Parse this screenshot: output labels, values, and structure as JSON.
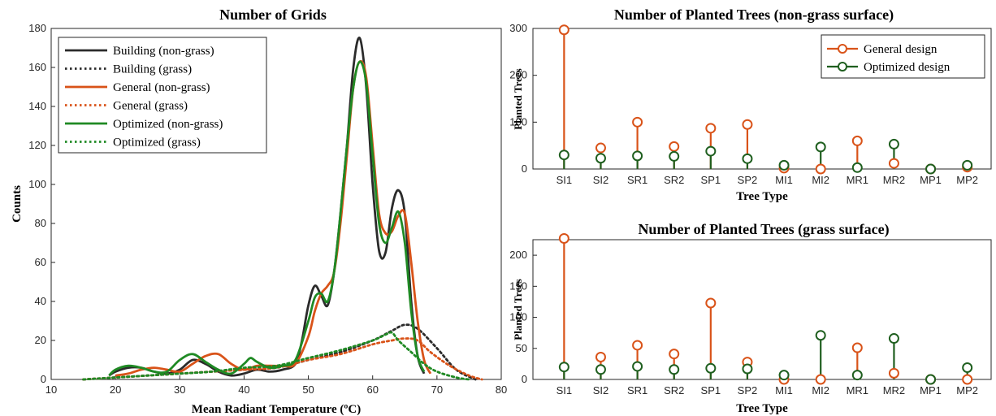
{
  "chart_data": [
    {
      "type": "line",
      "title": "Number of Grids",
      "xlabel": "Mean Radiant Temperature (ºC)",
      "ylabel": "Counts",
      "xlim": [
        10,
        80
      ],
      "ylim": [
        0,
        180
      ],
      "xticks": [
        10,
        20,
        30,
        40,
        50,
        60,
        70,
        80
      ],
      "yticks": [
        0,
        20,
        40,
        60,
        80,
        100,
        120,
        140,
        160,
        180
      ],
      "legend_position": "top-left",
      "grid": false,
      "series": [
        {
          "name": "Building (non-grass)",
          "color": "#2b2b2b",
          "dash": "solid",
          "x": [
            19,
            20,
            22,
            24,
            26,
            28,
            30,
            32,
            34,
            36,
            38,
            40,
            42,
            44,
            46,
            48,
            49,
            50,
            51,
            52,
            53,
            54,
            55,
            56,
            57,
            58,
            59,
            60,
            61,
            62,
            63,
            64,
            65,
            66,
            67,
            68
          ],
          "y": [
            2,
            4,
            6,
            6,
            4,
            3,
            5,
            10,
            8,
            4,
            2,
            3,
            5,
            4,
            5,
            8,
            20,
            38,
            48,
            43,
            38,
            55,
            85,
            120,
            160,
            175,
            150,
            100,
            66,
            65,
            88,
            97,
            85,
            40,
            12,
            3
          ]
        },
        {
          "name": "Building (grass)",
          "color": "#2b2b2b",
          "dash": "dotted",
          "x": [
            15,
            20,
            25,
            30,
            35,
            40,
            45,
            50,
            55,
            60,
            63,
            65,
            67,
            70,
            73,
            76
          ],
          "y": [
            0,
            1,
            2,
            3,
            4,
            5,
            6,
            10,
            14,
            20,
            25,
            28,
            26,
            16,
            5,
            0
          ]
        },
        {
          "name": "General (non-grass)",
          "color": "#d95319",
          "dash": "solid",
          "x": [
            20,
            22,
            24,
            26,
            28,
            30,
            32,
            34,
            36,
            38,
            40,
            42,
            44,
            46,
            48,
            50,
            51,
            52,
            53,
            54,
            55,
            56,
            57,
            58,
            59,
            60,
            61,
            62,
            63,
            64,
            65,
            66,
            67,
            68,
            69
          ],
          "y": [
            2,
            3,
            5,
            6,
            5,
            4,
            8,
            12,
            13,
            8,
            5,
            7,
            7,
            7,
            8,
            22,
            35,
            44,
            48,
            55,
            80,
            115,
            150,
            163,
            155,
            120,
            85,
            75,
            76,
            84,
            85,
            60,
            30,
            10,
            3
          ]
        },
        {
          "name": "General (grass)",
          "color": "#d95319",
          "dash": "dotted",
          "x": [
            15,
            20,
            25,
            30,
            35,
            40,
            45,
            50,
            55,
            60,
            63,
            65,
            67,
            69,
            72,
            75,
            77
          ],
          "y": [
            0,
            1,
            2,
            3,
            4,
            5,
            6,
            10,
            13,
            18,
            20,
            21,
            20,
            14,
            7,
            2,
            0
          ]
        },
        {
          "name": "Optimized (non-grass)",
          "color": "#1f8a24",
          "dash": "solid",
          "x": [
            19,
            20,
            22,
            24,
            26,
            28,
            30,
            32,
            34,
            36,
            38,
            40,
            41,
            42,
            44,
            46,
            48,
            50,
            51,
            52,
            53,
            54,
            55,
            56,
            57,
            58,
            59,
            60,
            61,
            62,
            63,
            64,
            65,
            66,
            67,
            68
          ],
          "y": [
            2,
            5,
            7,
            6,
            4,
            4,
            10,
            13,
            9,
            5,
            3,
            8,
            11,
            9,
            6,
            7,
            10,
            30,
            42,
            44,
            40,
            55,
            85,
            120,
            150,
            163,
            152,
            115,
            80,
            70,
            78,
            86,
            70,
            35,
            12,
            4
          ]
        },
        {
          "name": "Optimized (grass)",
          "color": "#1f8a24",
          "dash": "dotted",
          "x": [
            15,
            20,
            25,
            30,
            35,
            40,
            45,
            50,
            55,
            60,
            62,
            63,
            64,
            66,
            68,
            70,
            73,
            75
          ],
          "y": [
            0,
            1,
            2,
            3,
            4,
            6,
            7,
            11,
            15,
            20,
            23,
            24,
            20,
            14,
            8,
            4,
            1,
            0
          ]
        }
      ]
    },
    {
      "type": "stem",
      "title": "Number of Planted Trees (non-grass surface)",
      "xlabel": "Tree Type",
      "ylabel": "Planted Trees",
      "ylim": [
        0,
        300
      ],
      "yticks": [
        0,
        100,
        200,
        300
      ],
      "legend_position": "top-right",
      "categories": [
        "SI1",
        "SI2",
        "SR1",
        "SR2",
        "SP1",
        "SP2",
        "MI1",
        "MI2",
        "MR1",
        "MR2",
        "MP1",
        "MP2"
      ],
      "series": [
        {
          "name": "General design",
          "color": "#d95319",
          "values": [
            297,
            45,
            100,
            48,
            87,
            95,
            2,
            0,
            60,
            12,
            0,
            4
          ]
        },
        {
          "name": "Optimized design",
          "color": "#1f5f1f",
          "values": [
            30,
            23,
            28,
            27,
            38,
            22,
            8,
            47,
            3,
            53,
            0,
            8
          ]
        }
      ]
    },
    {
      "type": "stem",
      "title": "Number of Planted Trees (grass surface)",
      "xlabel": "Tree Type",
      "ylabel": "Planted Trees",
      "ylim": [
        0,
        225
      ],
      "yticks": [
        0,
        50,
        100,
        150,
        200
      ],
      "categories": [
        "SI1",
        "SI2",
        "SR1",
        "SR2",
        "SP1",
        "SP2",
        "MI1",
        "MI2",
        "MR1",
        "MR2",
        "MP1",
        "MP2"
      ],
      "series": [
        {
          "name": "General design",
          "color": "#d95319",
          "values": [
            227,
            36,
            55,
            41,
            123,
            28,
            0,
            0,
            51,
            10,
            0,
            0
          ]
        },
        {
          "name": "Optimized design",
          "color": "#1f5f1f",
          "values": [
            20,
            16,
            21,
            16,
            18,
            17,
            7,
            71,
            7,
            66,
            0,
            19
          ]
        }
      ]
    }
  ]
}
